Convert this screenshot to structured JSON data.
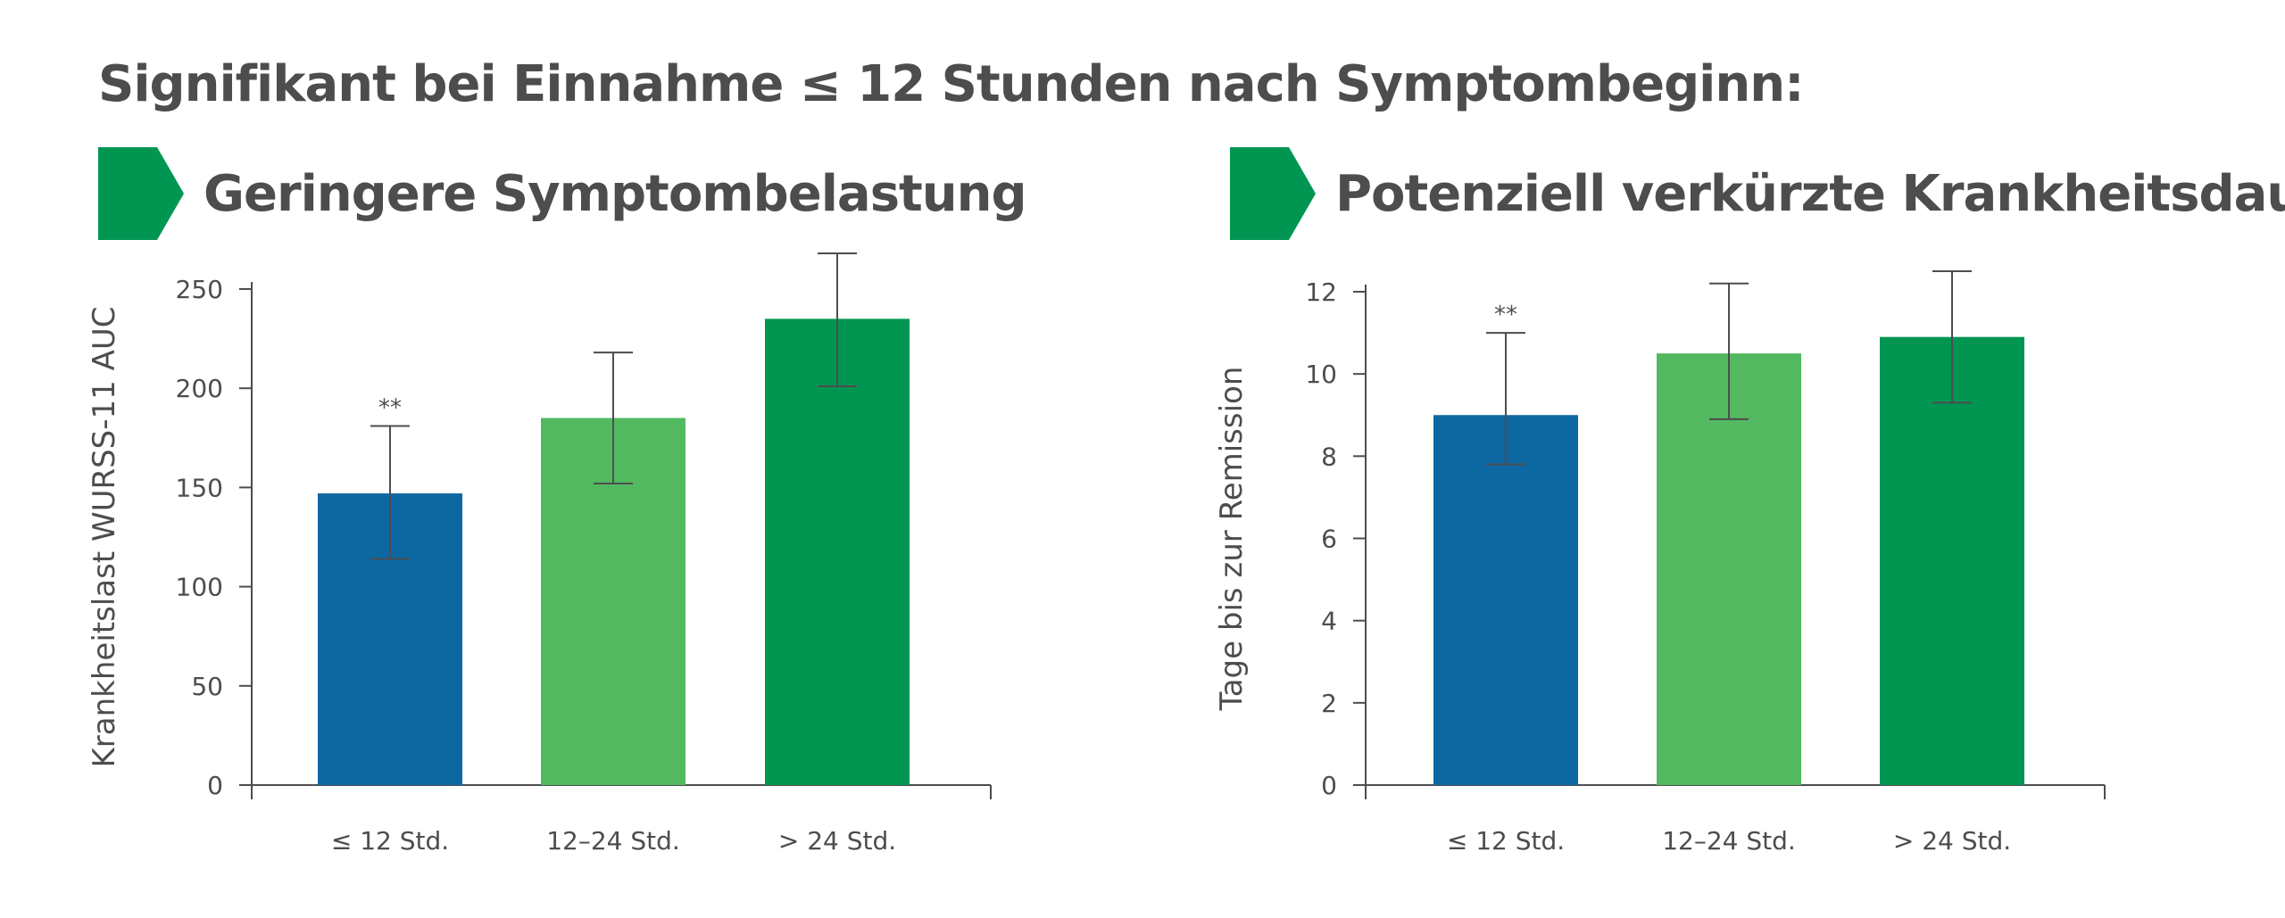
{
  "header": {
    "title": "Signifikant bei Einnahme ≤ 12 Stunden nach Symptombeginn:",
    "accent_color": "#009652"
  },
  "chart_data": [
    {
      "type": "bar",
      "title": "Geringere Symptombelastung",
      "ylabel": "Krankheitslast WURSS-11 AUC",
      "xlabel": "",
      "categories": [
        "≤ 12 Std.",
        "12–24 Std.",
        "> 24 Std."
      ],
      "values": [
        147,
        185,
        235
      ],
      "error_low": [
        114,
        152,
        201
      ],
      "error_high": [
        181,
        218,
        268
      ],
      "significance": [
        "**",
        "",
        ""
      ],
      "colors": [
        "#0d68a1",
        "#52b960",
        "#009652"
      ],
      "ylim": [
        0,
        250
      ],
      "yticks": [
        0,
        50,
        100,
        150,
        200,
        250
      ],
      "grid": false
    },
    {
      "type": "bar",
      "title": "Potenziell verkürzte Krankheitsdauer",
      "ylabel": "Tage bis zur Remission",
      "xlabel": "",
      "categories": [
        "≤ 12 Std.",
        "12–24 Std.",
        "> 24 Std."
      ],
      "values": [
        9.0,
        10.5,
        10.9
      ],
      "error_low": [
        7.8,
        8.9,
        9.3
      ],
      "error_high": [
        11.0,
        12.2,
        12.5
      ],
      "significance": [
        "**",
        "",
        ""
      ],
      "colors": [
        "#0d68a1",
        "#52b960",
        "#009652"
      ],
      "ylim": [
        0,
        12
      ],
      "yticks": [
        0,
        2,
        4,
        6,
        8,
        10,
        12
      ],
      "grid": false
    }
  ]
}
